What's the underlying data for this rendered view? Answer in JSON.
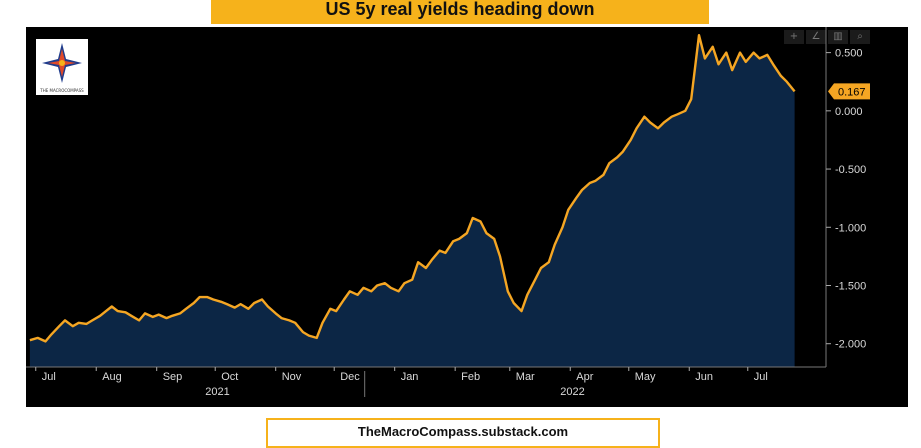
{
  "header": {
    "title": "US 5y real yields heading down"
  },
  "footer": {
    "source": "TheMacroCompass.substack.com"
  },
  "logo": {
    "caption": "THE MACROCOMPASS"
  },
  "toolbar": {
    "icons": [
      "crosshair-icon",
      "draw-icon",
      "chart-type-icon",
      "zoom-icon"
    ]
  },
  "colors": {
    "line": "#f5a623",
    "fill": "#0c2645",
    "background": "#000000",
    "axis_text": "#d9d9d9",
    "value_label_bg": "#f5a623"
  },
  "chart_data": {
    "type": "area",
    "title": "US 5y real yields heading down",
    "xlabel": "",
    "ylabel": "",
    "ylim": [
      -2.2,
      0.72
    ],
    "yticks": [
      0.5,
      0.0,
      -0.5,
      -1.0,
      -1.5,
      -2.0
    ],
    "ytick_labels": [
      "0.500",
      "0.000",
      "-0.500",
      "-1.000",
      "-1.500",
      "-2.000"
    ],
    "grid": false,
    "x_month_labels": [
      {
        "label": "Jul",
        "date": "2021-07-01"
      },
      {
        "label": "Aug",
        "date": "2021-08-01"
      },
      {
        "label": "Sep",
        "date": "2021-09-01"
      },
      {
        "label": "Oct",
        "date": "2021-10-01"
      },
      {
        "label": "Nov",
        "date": "2021-11-01"
      },
      {
        "label": "Dec",
        "date": "2021-12-01"
      },
      {
        "label": "Jan",
        "date": "2022-01-01"
      },
      {
        "label": "Feb",
        "date": "2022-02-01"
      },
      {
        "label": "Mar",
        "date": "2022-03-01"
      },
      {
        "label": "Apr",
        "date": "2022-04-01"
      },
      {
        "label": "May",
        "date": "2022-05-01"
      },
      {
        "label": "Jun",
        "date": "2022-06-01"
      },
      {
        "label": "Jul",
        "date": "2022-07-01"
      }
    ],
    "x_year_labels": [
      {
        "label": "2021",
        "date": "2021-10-01"
      },
      {
        "label": "2022",
        "date": "2022-04-01"
      }
    ],
    "last_value_label": "0.167",
    "points": [
      [
        "2021-06-28",
        -1.97
      ],
      [
        "2021-07-02",
        -1.95
      ],
      [
        "2021-07-06",
        -1.98
      ],
      [
        "2021-07-09",
        -1.92
      ],
      [
        "2021-07-13",
        -1.85
      ],
      [
        "2021-07-16",
        -1.8
      ],
      [
        "2021-07-20",
        -1.85
      ],
      [
        "2021-07-23",
        -1.82
      ],
      [
        "2021-07-27",
        -1.83
      ],
      [
        "2021-07-30",
        -1.8
      ],
      [
        "2021-08-03",
        -1.76
      ],
      [
        "2021-08-06",
        -1.72
      ],
      [
        "2021-08-09",
        -1.68
      ],
      [
        "2021-08-12",
        -1.72
      ],
      [
        "2021-08-16",
        -1.73
      ],
      [
        "2021-08-19",
        -1.76
      ],
      [
        "2021-08-23",
        -1.8
      ],
      [
        "2021-08-26",
        -1.74
      ],
      [
        "2021-08-30",
        -1.77
      ],
      [
        "2021-09-02",
        -1.75
      ],
      [
        "2021-09-06",
        -1.78
      ],
      [
        "2021-09-09",
        -1.76
      ],
      [
        "2021-09-13",
        -1.74
      ],
      [
        "2021-09-16",
        -1.7
      ],
      [
        "2021-09-20",
        -1.65
      ],
      [
        "2021-09-23",
        -1.6
      ],
      [
        "2021-09-27",
        -1.6
      ],
      [
        "2021-09-30",
        -1.62
      ],
      [
        "2021-10-04",
        -1.64
      ],
      [
        "2021-10-07",
        -1.66
      ],
      [
        "2021-10-11",
        -1.69
      ],
      [
        "2021-10-14",
        -1.66
      ],
      [
        "2021-10-18",
        -1.7
      ],
      [
        "2021-10-21",
        -1.65
      ],
      [
        "2021-10-25",
        -1.62
      ],
      [
        "2021-10-28",
        -1.68
      ],
      [
        "2021-11-01",
        -1.74
      ],
      [
        "2021-11-04",
        -1.78
      ],
      [
        "2021-11-08",
        -1.8
      ],
      [
        "2021-11-11",
        -1.82
      ],
      [
        "2021-11-15",
        -1.9
      ],
      [
        "2021-11-18",
        -1.93
      ],
      [
        "2021-11-22",
        -1.95
      ],
      [
        "2021-11-25",
        -1.82
      ],
      [
        "2021-11-29",
        -1.7
      ],
      [
        "2021-12-02",
        -1.72
      ],
      [
        "2021-12-06",
        -1.62
      ],
      [
        "2021-12-09",
        -1.55
      ],
      [
        "2021-12-13",
        -1.58
      ],
      [
        "2021-12-16",
        -1.52
      ],
      [
        "2021-12-20",
        -1.55
      ],
      [
        "2021-12-23",
        -1.5
      ],
      [
        "2021-12-27",
        -1.48
      ],
      [
        "2021-12-30",
        -1.52
      ],
      [
        "2022-01-03",
        -1.55
      ],
      [
        "2022-01-06",
        -1.48
      ],
      [
        "2022-01-10",
        -1.45
      ],
      [
        "2022-01-13",
        -1.3
      ],
      [
        "2022-01-17",
        -1.35
      ],
      [
        "2022-01-20",
        -1.28
      ],
      [
        "2022-01-24",
        -1.2
      ],
      [
        "2022-01-27",
        -1.22
      ],
      [
        "2022-01-31",
        -1.12
      ],
      [
        "2022-02-03",
        -1.1
      ],
      [
        "2022-02-07",
        -1.05
      ],
      [
        "2022-02-10",
        -0.92
      ],
      [
        "2022-02-14",
        -0.95
      ],
      [
        "2022-02-17",
        -1.05
      ],
      [
        "2022-02-21",
        -1.1
      ],
      [
        "2022-02-24",
        -1.25
      ],
      [
        "2022-02-28",
        -1.55
      ],
      [
        "2022-03-03",
        -1.65
      ],
      [
        "2022-03-07",
        -1.72
      ],
      [
        "2022-03-10",
        -1.58
      ],
      [
        "2022-03-14",
        -1.45
      ],
      [
        "2022-03-17",
        -1.35
      ],
      [
        "2022-03-21",
        -1.3
      ],
      [
        "2022-03-24",
        -1.15
      ],
      [
        "2022-03-28",
        -1.0
      ],
      [
        "2022-03-31",
        -0.85
      ],
      [
        "2022-04-04",
        -0.75
      ],
      [
        "2022-04-07",
        -0.68
      ],
      [
        "2022-04-11",
        -0.62
      ],
      [
        "2022-04-14",
        -0.6
      ],
      [
        "2022-04-18",
        -0.55
      ],
      [
        "2022-04-21",
        -0.45
      ],
      [
        "2022-04-25",
        -0.4
      ],
      [
        "2022-04-28",
        -0.35
      ],
      [
        "2022-05-02",
        -0.25
      ],
      [
        "2022-05-05",
        -0.15
      ],
      [
        "2022-05-09",
        -0.05
      ],
      [
        "2022-05-12",
        -0.1
      ],
      [
        "2022-05-16",
        -0.15
      ],
      [
        "2022-05-19",
        -0.1
      ],
      [
        "2022-05-23",
        -0.05
      ],
      [
        "2022-05-26",
        -0.03
      ],
      [
        "2022-05-30",
        0.0
      ],
      [
        "2022-06-02",
        0.1
      ],
      [
        "2022-06-06",
        0.65
      ],
      [
        "2022-06-09",
        0.45
      ],
      [
        "2022-06-13",
        0.55
      ],
      [
        "2022-06-16",
        0.4
      ],
      [
        "2022-06-20",
        0.5
      ],
      [
        "2022-06-23",
        0.35
      ],
      [
        "2022-06-27",
        0.5
      ],
      [
        "2022-06-30",
        0.42
      ],
      [
        "2022-07-04",
        0.5
      ],
      [
        "2022-07-07",
        0.45
      ],
      [
        "2022-07-11",
        0.48
      ],
      [
        "2022-07-14",
        0.4
      ],
      [
        "2022-07-18",
        0.3
      ],
      [
        "2022-07-21",
        0.25
      ],
      [
        "2022-07-25",
        0.167
      ]
    ]
  }
}
